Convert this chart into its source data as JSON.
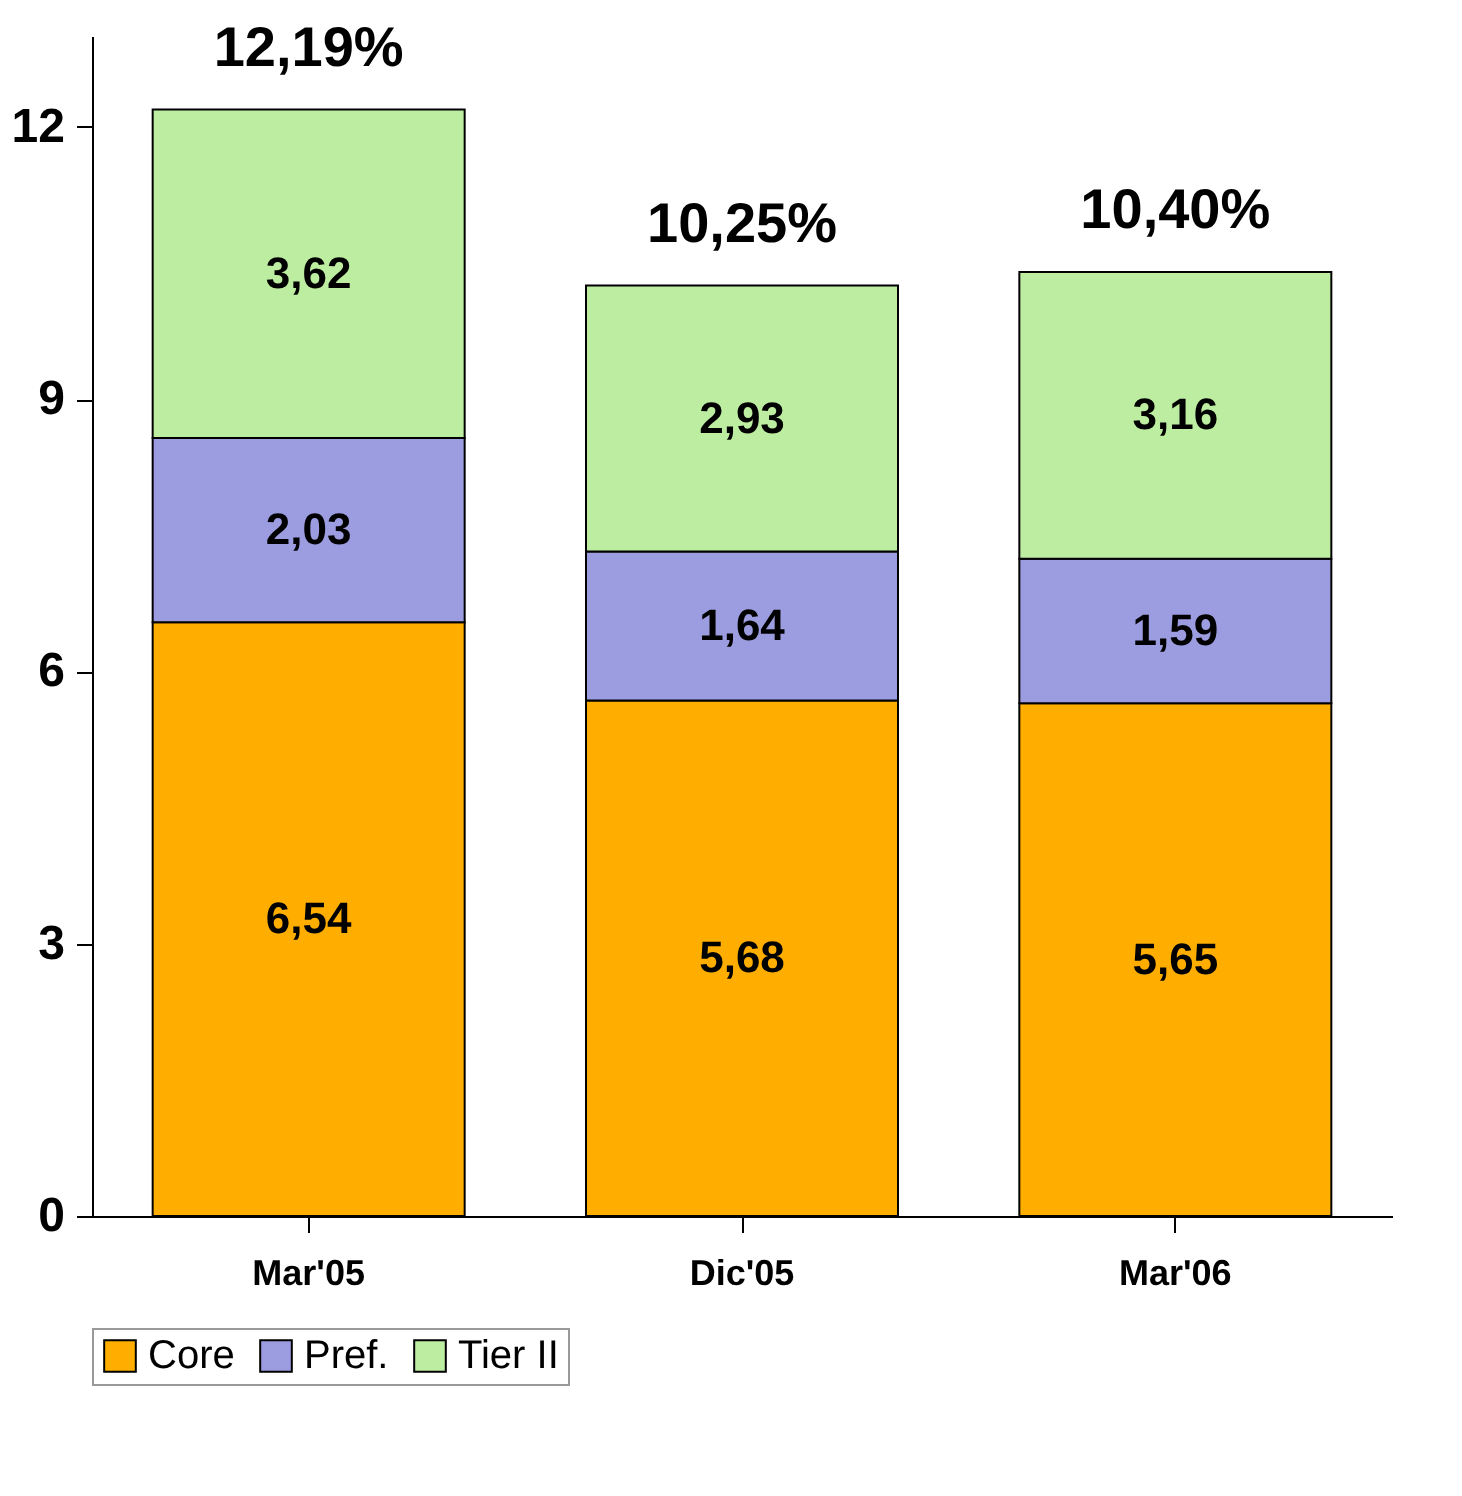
{
  "chart_data": {
    "type": "bar",
    "stacked": true,
    "categories": [
      "Mar'05",
      "Dic'05",
      "Mar'06"
    ],
    "series": [
      {
        "name": "Core",
        "color": "#ffae00",
        "values": [
          6.54,
          5.68,
          5.65
        ],
        "value_labels": [
          "6,54",
          "5,68",
          "5,65"
        ]
      },
      {
        "name": "Pref.",
        "color": "#9c9ce0",
        "values": [
          2.03,
          1.64,
          1.59
        ],
        "value_labels": [
          "2,03",
          "1,64",
          "1,59"
        ]
      },
      {
        "name": "Tier II",
        "color": "#bdeda0",
        "values": [
          3.62,
          2.93,
          3.16
        ],
        "value_labels": [
          "3,62",
          "2,93",
          "3,16"
        ]
      }
    ],
    "totals": [
      "12,19%",
      "10,25%",
      "10,40%"
    ],
    "ylim": [
      0,
      13
    ],
    "yticks": [
      0,
      3,
      6,
      9,
      12
    ],
    "grid": false,
    "legend": "bottom"
  }
}
